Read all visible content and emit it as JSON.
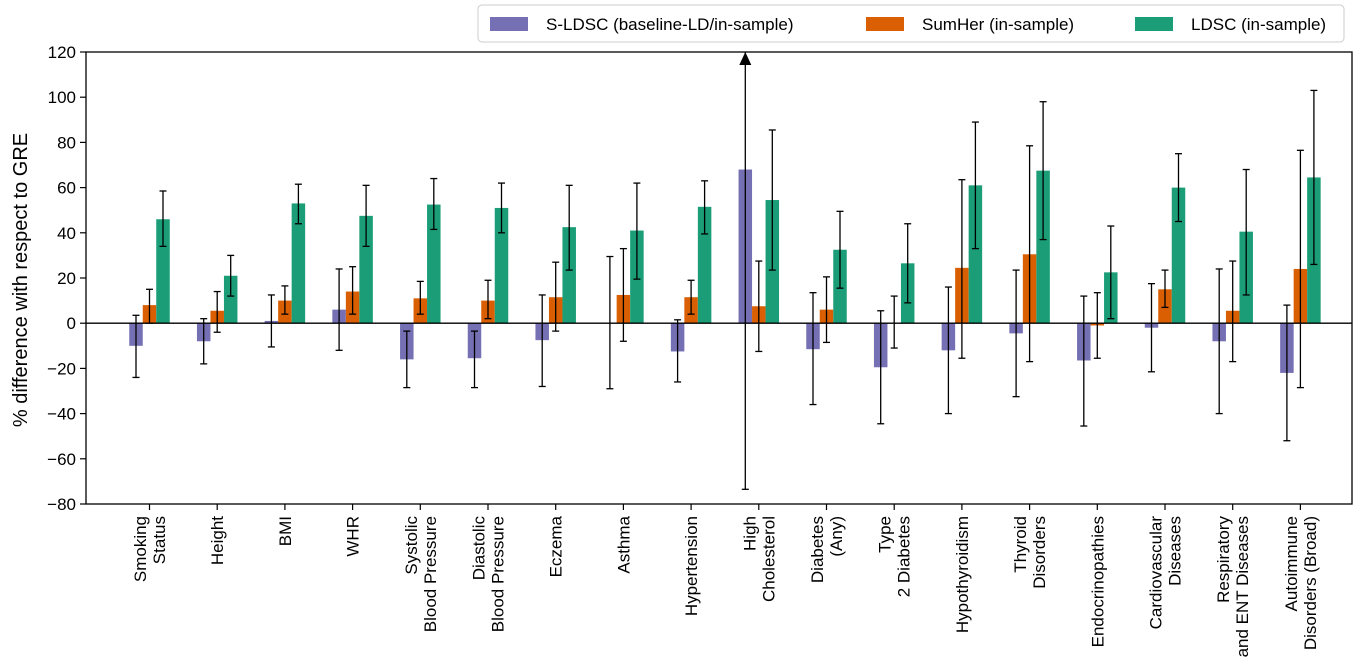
{
  "chart_data": {
    "type": "bar",
    "ylabel": "% difference with respect to GRE",
    "xlabel": "",
    "ylim": [
      -80,
      120
    ],
    "yticks": [
      -80,
      -60,
      -40,
      -20,
      0,
      20,
      40,
      60,
      80,
      100,
      120
    ],
    "grid": false,
    "legend_position": "top-right",
    "categories": [
      [
        "Smoking",
        "Status"
      ],
      [
        "Height"
      ],
      [
        "BMI"
      ],
      [
        "WHR"
      ],
      [
        "Systolic",
        "Blood Pressure"
      ],
      [
        "Diastolic",
        "Blood Pressure"
      ],
      [
        "Eczema"
      ],
      [
        "Asthma"
      ],
      [
        "Hypertension"
      ],
      [
        "High",
        "Cholesterol"
      ],
      [
        "Diabetes",
        "(Any)"
      ],
      [
        "Type",
        "2 Diabetes"
      ],
      [
        "Hypothyroidism"
      ],
      [
        "Thyroid",
        "Disorders"
      ],
      [
        "Endocrinopathies"
      ],
      [
        "Cardiovascular",
        "Diseases"
      ],
      [
        "Respiratory",
        "and ENT Diseases"
      ],
      [
        "Autoimmune",
        "Disorders (Broad)"
      ]
    ],
    "series": [
      {
        "name": "S-LDSC (baseline-LD/in-sample)",
        "color": "#7570b3",
        "values": [
          -10,
          -8,
          1,
          6,
          -16,
          -15.5,
          -7.5,
          0,
          -12.5,
          68,
          -11.5,
          -19.5,
          -12,
          -4.5,
          -16.5,
          -2,
          -8,
          -22
        ],
        "err_low": [
          -24,
          -18,
          -10.5,
          -12,
          -28.5,
          -28.5,
          -28,
          -29,
          -26,
          -73.5,
          -36,
          -44.5,
          -40,
          -32.5,
          -45.5,
          -21.5,
          -40,
          -52
        ],
        "err_high": [
          3.5,
          2,
          12.5,
          24,
          -3.5,
          -3.5,
          12.5,
          29.5,
          1.5,
          120,
          13.5,
          5.5,
          16,
          23.5,
          12,
          17.5,
          24,
          8
        ],
        "arrow_up_index": 9
      },
      {
        "name": "SumHer (in-sample)",
        "color": "#d95f02",
        "values": [
          8,
          5.5,
          10,
          14,
          11,
          10,
          11.5,
          12.5,
          11.5,
          7.5,
          6,
          0,
          24.5,
          30.5,
          -1,
          15,
          5.5,
          24
        ],
        "err_low": [
          0,
          -4,
          4,
          4,
          4,
          2,
          -3.5,
          -8,
          4,
          -12.5,
          -8.5,
          -11,
          -15.5,
          -17,
          -15.5,
          7,
          -17,
          -28.5
        ],
        "err_high": [
          15,
          14,
          16.5,
          25,
          18.5,
          19,
          27,
          33,
          19,
          27.5,
          20.5,
          12,
          63.5,
          78.5,
          13.5,
          23.5,
          27.5,
          76.5
        ]
      },
      {
        "name": "LDSC (in-sample)",
        "color": "#1b9e77",
        "values": [
          46,
          21,
          53,
          47.5,
          52.5,
          51,
          42.5,
          41,
          51.5,
          54.5,
          32.5,
          26.5,
          61,
          67.5,
          22.5,
          60,
          40.5,
          64.5
        ],
        "err_low": [
          34,
          12,
          44,
          34,
          41.5,
          40,
          23.5,
          19.5,
          39.5,
          23.5,
          15.5,
          9,
          33,
          37,
          2,
          45,
          12.5,
          26
        ],
        "err_high": [
          58.5,
          30,
          61.5,
          61,
          64,
          62,
          61,
          62,
          63,
          85.5,
          49.5,
          44,
          89,
          98,
          43,
          75,
          68,
          103
        ]
      }
    ]
  }
}
